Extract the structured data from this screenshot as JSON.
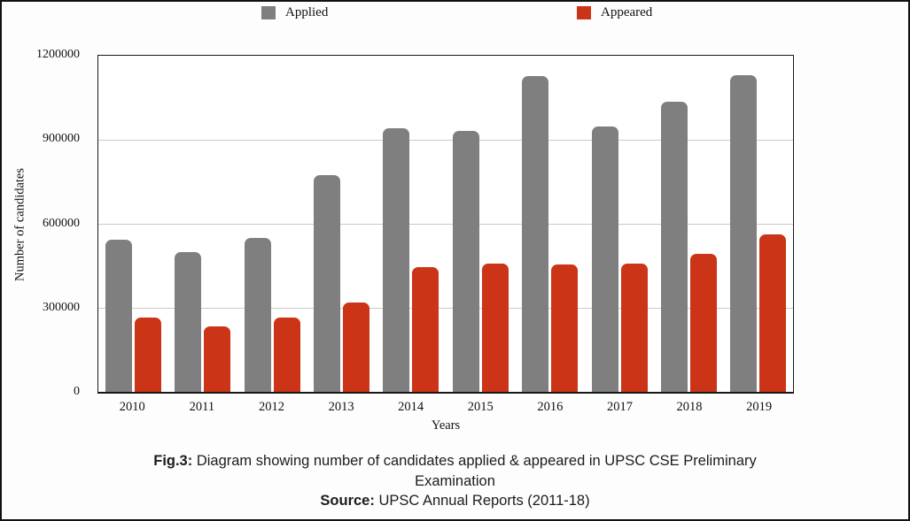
{
  "legend": {
    "applied": "Applied",
    "appeared": "Appeared"
  },
  "chart_data": {
    "type": "bar",
    "title": "",
    "xlabel": "Years",
    "ylabel": "Number of candidates",
    "ylim": [
      0,
      1200000
    ],
    "yticks": [
      0,
      300000,
      600000,
      900000,
      1200000
    ],
    "grid": "horizontal",
    "legend_position": "top",
    "categories": [
      "2010",
      "2011",
      "2012",
      "2013",
      "2014",
      "2015",
      "2016",
      "2017",
      "2018",
      "2019"
    ],
    "series": [
      {
        "name": "Applied",
        "color": "#7f7f7f",
        "values": [
          545000,
          500000,
          550000,
          775000,
          945000,
          935000,
          1130000,
          950000,
          1040000,
          1135000
        ]
      },
      {
        "name": "Appeared",
        "color": "#cb3416",
        "values": [
          265000,
          235000,
          265000,
          320000,
          445000,
          460000,
          455000,
          460000,
          495000,
          565000
        ]
      }
    ]
  },
  "caption": {
    "fig_label": "Fig.3:",
    "fig_text": "Diagram showing number of candidates applied & appeared in  UPSC CSE Preliminary",
    "fig_text_line2": "Examination",
    "source_label": "Source:",
    "source_text": "UPSC Annual Reports (2011-18)"
  },
  "colors": {
    "applied_bar": "#7f7f7f",
    "appeared_bar": "#cb3416",
    "gridline": "#cacaca",
    "plot_frame": "#1a1a1a",
    "outer_border": "#121212"
  }
}
